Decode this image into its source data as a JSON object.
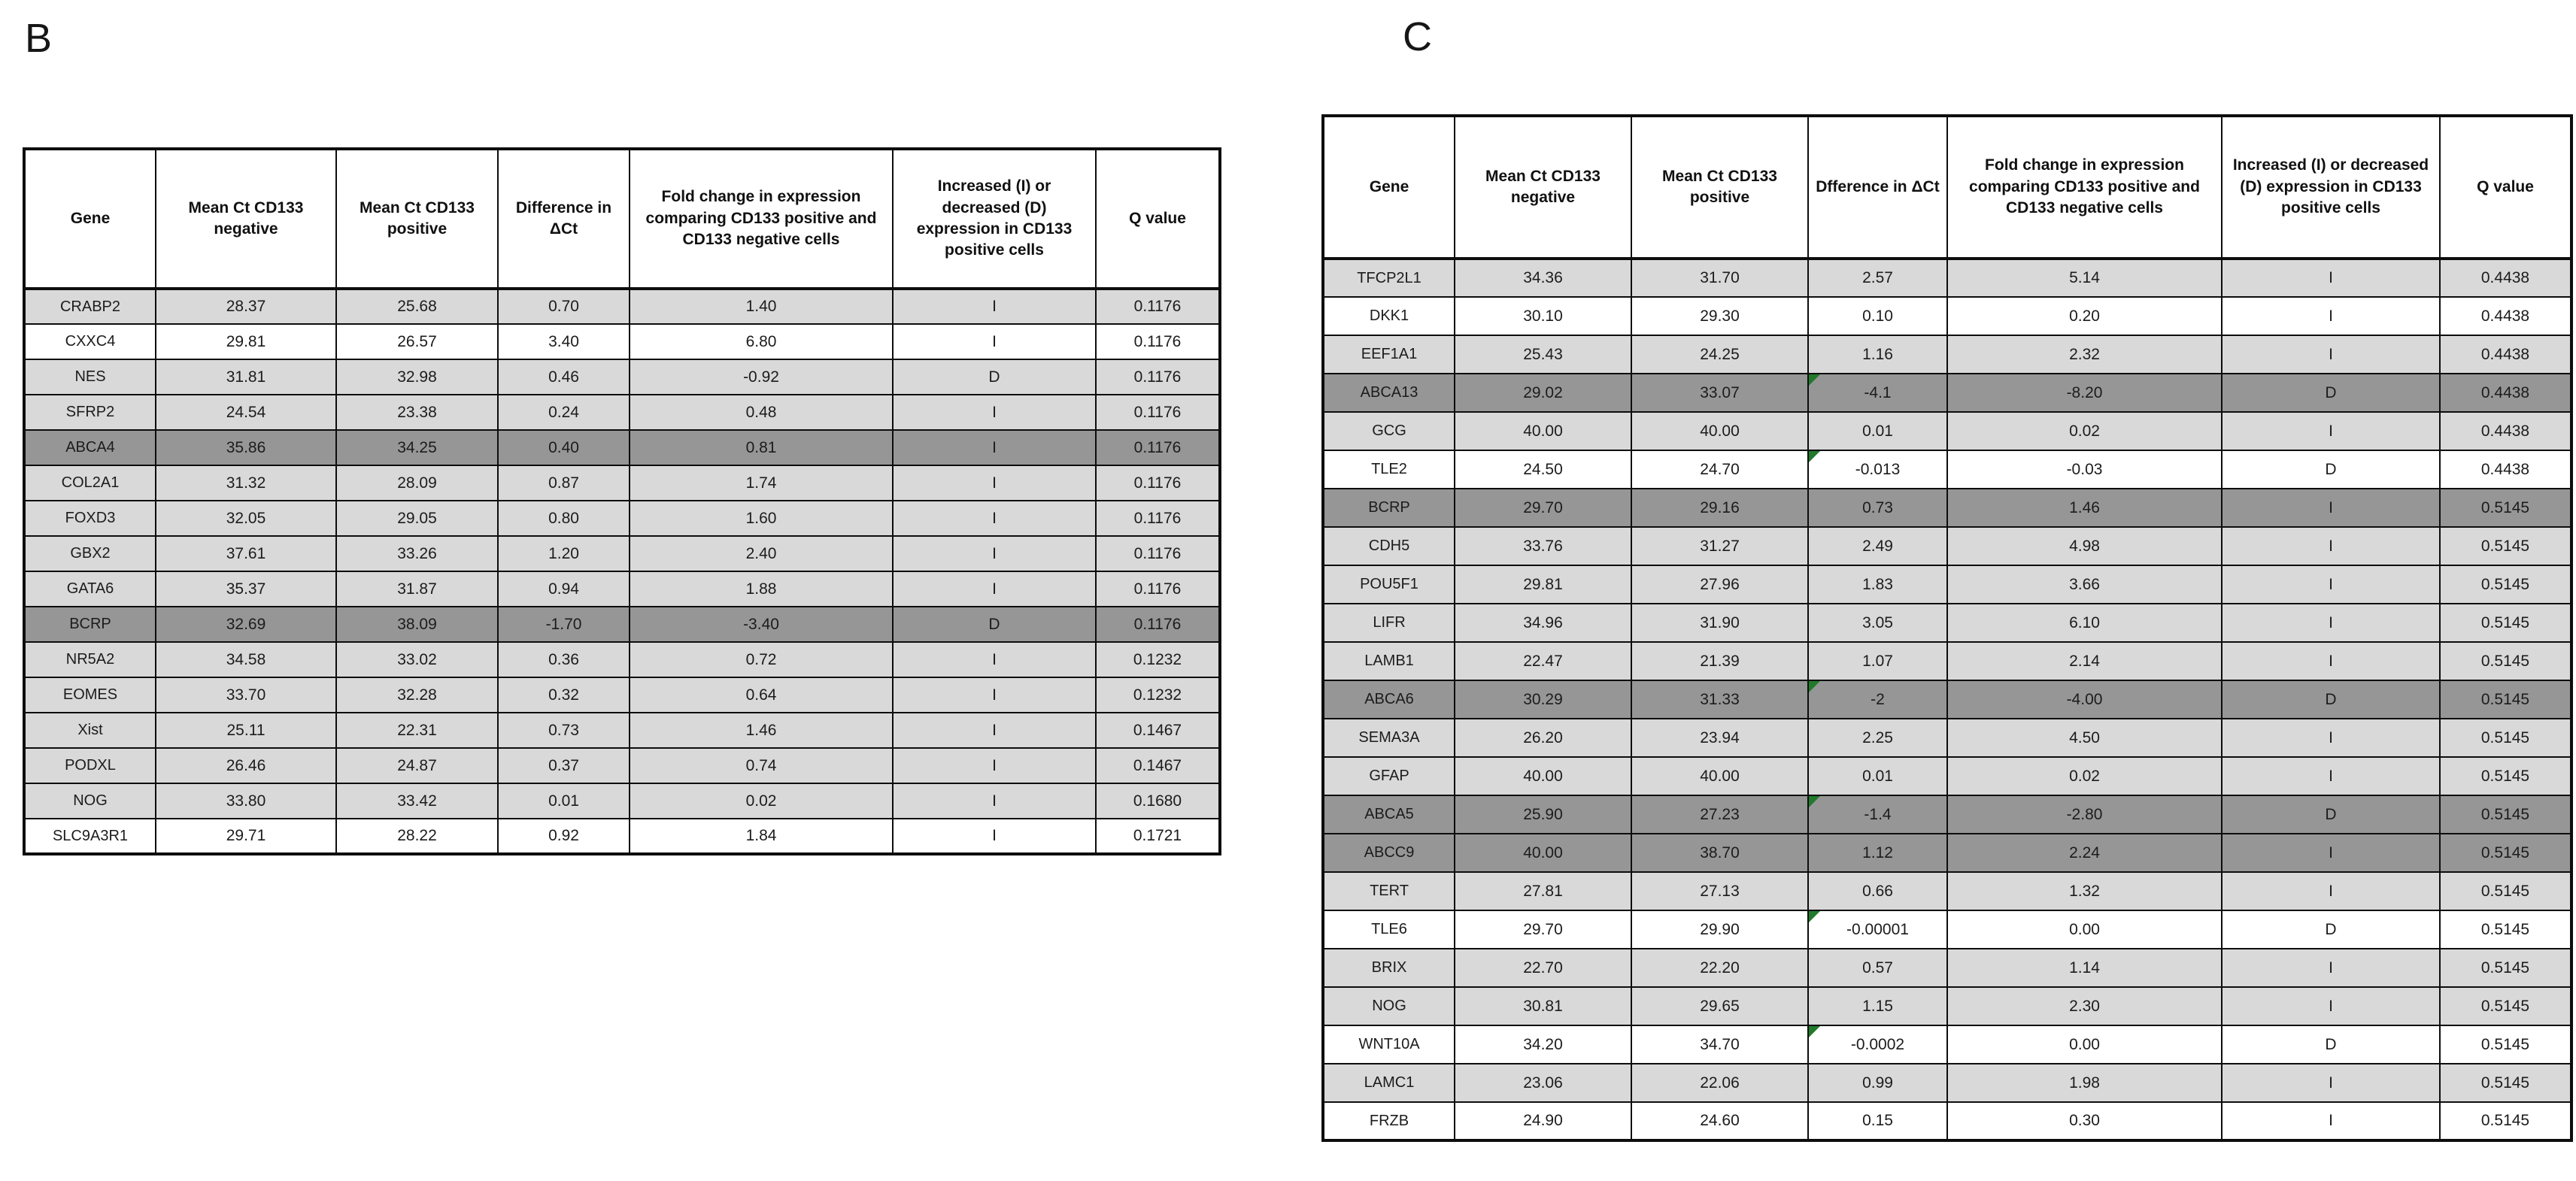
{
  "colors": {
    "row_light": "#d9d9d9",
    "row_dark": "#969696",
    "row_white": "#ffffff",
    "error_marker_green": "#217a2b"
  },
  "panel_b": {
    "label": "B",
    "columns": [
      "Gene",
      "Mean Ct CD133 negative",
      "Mean Ct CD133 positive",
      "Difference in ΔCt",
      "Fold change in expression comparing CD133 positive and CD133 negative cells",
      "Increased (I) or decreased (D) expression in CD133 positive cells",
      "Q value"
    ],
    "rows": [
      {
        "gene": "CRABP2",
        "ct_neg": "28.37",
        "ct_pos": "25.68",
        "diff": "0.70",
        "fold": "1.40",
        "dir": "I",
        "q": "0.1176",
        "shade": "light"
      },
      {
        "gene": "CXXC4",
        "ct_neg": "29.81",
        "ct_pos": "26.57",
        "diff": "3.40",
        "fold": "6.80",
        "dir": "I",
        "q": "0.1176",
        "shade": "white"
      },
      {
        "gene": "NES",
        "ct_neg": "31.81",
        "ct_pos": "32.98",
        "diff": "0.46",
        "fold": "-0.92",
        "dir": "D",
        "q": "0.1176",
        "shade": "light"
      },
      {
        "gene": "SFRP2",
        "ct_neg": "24.54",
        "ct_pos": "23.38",
        "diff": "0.24",
        "fold": "0.48",
        "dir": "I",
        "q": "0.1176",
        "shade": "light"
      },
      {
        "gene": "ABCA4",
        "ct_neg": "35.86",
        "ct_pos": "34.25",
        "diff": "0.40",
        "fold": "0.81",
        "dir": "I",
        "q": "0.1176",
        "shade": "dark"
      },
      {
        "gene": "COL2A1",
        "ct_neg": "31.32",
        "ct_pos": "28.09",
        "diff": "0.87",
        "fold": "1.74",
        "dir": "I",
        "q": "0.1176",
        "shade": "light"
      },
      {
        "gene": "FOXD3",
        "ct_neg": "32.05",
        "ct_pos": "29.05",
        "diff": "0.80",
        "fold": "1.60",
        "dir": "I",
        "q": "0.1176",
        "shade": "light"
      },
      {
        "gene": "GBX2",
        "ct_neg": "37.61",
        "ct_pos": "33.26",
        "diff": "1.20",
        "fold": "2.40",
        "dir": "I",
        "q": "0.1176",
        "shade": "light"
      },
      {
        "gene": "GATA6",
        "ct_neg": "35.37",
        "ct_pos": "31.87",
        "diff": "0.94",
        "fold": "1.88",
        "dir": "I",
        "q": "0.1176",
        "shade": "light"
      },
      {
        "gene": "BCRP",
        "ct_neg": "32.69",
        "ct_pos": "38.09",
        "diff": "-1.70",
        "fold": "-3.40",
        "dir": "D",
        "q": "0.1176",
        "shade": "dark"
      },
      {
        "gene": "NR5A2",
        "ct_neg": "34.58",
        "ct_pos": "33.02",
        "diff": "0.36",
        "fold": "0.72",
        "dir": "I",
        "q": "0.1232",
        "shade": "light"
      },
      {
        "gene": "EOMES",
        "ct_neg": "33.70",
        "ct_pos": "32.28",
        "diff": "0.32",
        "fold": "0.64",
        "dir": "I",
        "q": "0.1232",
        "shade": "light"
      },
      {
        "gene": "Xist",
        "ct_neg": "25.11",
        "ct_pos": "22.31",
        "diff": "0.73",
        "fold": "1.46",
        "dir": "I",
        "q": "0.1467",
        "shade": "light"
      },
      {
        "gene": "PODXL",
        "ct_neg": "26.46",
        "ct_pos": "24.87",
        "diff": "0.37",
        "fold": "0.74",
        "dir": "I",
        "q": "0.1467",
        "shade": "light"
      },
      {
        "gene": "NOG",
        "ct_neg": "33.80",
        "ct_pos": "33.42",
        "diff": "0.01",
        "fold": "0.02",
        "dir": "I",
        "q": "0.1680",
        "shade": "light"
      },
      {
        "gene": "SLC9A3R1",
        "ct_neg": "29.71",
        "ct_pos": "28.22",
        "diff": "0.92",
        "fold": "1.84",
        "dir": "I",
        "q": "0.1721",
        "shade": "white"
      }
    ]
  },
  "panel_c": {
    "label": "C",
    "columns": [
      "Gene",
      "Mean Ct CD133 negative",
      "Mean Ct CD133 positive",
      "Dfference in ΔCt",
      "Fold change in expression comparing CD133 positive and CD133 negative cells",
      "Increased (I) or decreased (D) expression in CD133 positive cells",
      "Q value"
    ],
    "rows": [
      {
        "gene": "TFCP2L1",
        "ct_neg": "34.36",
        "ct_pos": "31.70",
        "diff": "2.57",
        "fold": "5.14",
        "dir": "I",
        "q": "0.4438",
        "shade": "light"
      },
      {
        "gene": "DKK1",
        "ct_neg": "30.10",
        "ct_pos": "29.30",
        "diff": "0.10",
        "fold": "0.20",
        "dir": "I",
        "q": "0.4438",
        "shade": "white"
      },
      {
        "gene": "EEF1A1",
        "ct_neg": "25.43",
        "ct_pos": "24.25",
        "diff": "1.16",
        "fold": "2.32",
        "dir": "I",
        "q": "0.4438",
        "shade": "light"
      },
      {
        "gene": "ABCA13",
        "ct_neg": "29.02",
        "ct_pos": "33.07",
        "diff": "-4.1",
        "fold": "-8.20",
        "dir": "D",
        "q": "0.4438",
        "shade": "dark",
        "marker": true
      },
      {
        "gene": "GCG",
        "ct_neg": "40.00",
        "ct_pos": "40.00",
        "diff": "0.01",
        "fold": "0.02",
        "dir": "I",
        "q": "0.4438",
        "shade": "light"
      },
      {
        "gene": "TLE2",
        "ct_neg": "24.50",
        "ct_pos": "24.70",
        "diff": "-0.013",
        "fold": "-0.03",
        "dir": "D",
        "q": "0.4438",
        "shade": "white",
        "marker": true
      },
      {
        "gene": "BCRP",
        "ct_neg": "29.70",
        "ct_pos": "29.16",
        "diff": "0.73",
        "fold": "1.46",
        "dir": "I",
        "q": "0.5145",
        "shade": "dark"
      },
      {
        "gene": "CDH5",
        "ct_neg": "33.76",
        "ct_pos": "31.27",
        "diff": "2.49",
        "fold": "4.98",
        "dir": "I",
        "q": "0.5145",
        "shade": "light"
      },
      {
        "gene": "POU5F1",
        "ct_neg": "29.81",
        "ct_pos": "27.96",
        "diff": "1.83",
        "fold": "3.66",
        "dir": "I",
        "q": "0.5145",
        "shade": "light"
      },
      {
        "gene": "LIFR",
        "ct_neg": "34.96",
        "ct_pos": "31.90",
        "diff": "3.05",
        "fold": "6.10",
        "dir": "I",
        "q": "0.5145",
        "shade": "light"
      },
      {
        "gene": "LAMB1",
        "ct_neg": "22.47",
        "ct_pos": "21.39",
        "diff": "1.07",
        "fold": "2.14",
        "dir": "I",
        "q": "0.5145",
        "shade": "light"
      },
      {
        "gene": "ABCA6",
        "ct_neg": "30.29",
        "ct_pos": "31.33",
        "diff": "-2",
        "fold": "-4.00",
        "dir": "D",
        "q": "0.5145",
        "shade": "dark",
        "marker": true
      },
      {
        "gene": "SEMA3A",
        "ct_neg": "26.20",
        "ct_pos": "23.94",
        "diff": "2.25",
        "fold": "4.50",
        "dir": "I",
        "q": "0.5145",
        "shade": "light"
      },
      {
        "gene": "GFAP",
        "ct_neg": "40.00",
        "ct_pos": "40.00",
        "diff": "0.01",
        "fold": "0.02",
        "dir": "I",
        "q": "0.5145",
        "shade": "light"
      },
      {
        "gene": "ABCA5",
        "ct_neg": "25.90",
        "ct_pos": "27.23",
        "diff": "-1.4",
        "fold": "-2.80",
        "dir": "D",
        "q": "0.5145",
        "shade": "dark",
        "marker": true
      },
      {
        "gene": "ABCC9",
        "ct_neg": "40.00",
        "ct_pos": "38.70",
        "diff": "1.12",
        "fold": "2.24",
        "dir": "I",
        "q": "0.5145",
        "shade": "dark"
      },
      {
        "gene": "TERT",
        "ct_neg": "27.81",
        "ct_pos": "27.13",
        "diff": "0.66",
        "fold": "1.32",
        "dir": "I",
        "q": "0.5145",
        "shade": "light"
      },
      {
        "gene": "TLE6",
        "ct_neg": "29.70",
        "ct_pos": "29.90",
        "diff": "-0.00001",
        "fold": "0.00",
        "dir": "D",
        "q": "0.5145",
        "shade": "white",
        "marker": true
      },
      {
        "gene": "BRIX",
        "ct_neg": "22.70",
        "ct_pos": "22.20",
        "diff": "0.57",
        "fold": "1.14",
        "dir": "I",
        "q": "0.5145",
        "shade": "light"
      },
      {
        "gene": "NOG",
        "ct_neg": "30.81",
        "ct_pos": "29.65",
        "diff": "1.15",
        "fold": "2.30",
        "dir": "I",
        "q": "0.5145",
        "shade": "light"
      },
      {
        "gene": "WNT10A",
        "ct_neg": "34.20",
        "ct_pos": "34.70",
        "diff": "-0.0002",
        "fold": "0.00",
        "dir": "D",
        "q": "0.5145",
        "shade": "white",
        "marker": true
      },
      {
        "gene": "LAMC1",
        "ct_neg": "23.06",
        "ct_pos": "22.06",
        "diff": "0.99",
        "fold": "1.98",
        "dir": "I",
        "q": "0.5145",
        "shade": "light"
      },
      {
        "gene": "FRZB",
        "ct_neg": "24.90",
        "ct_pos": "24.60",
        "diff": "0.15",
        "fold": "0.30",
        "dir": "I",
        "q": "0.5145",
        "shade": "white"
      }
    ]
  }
}
